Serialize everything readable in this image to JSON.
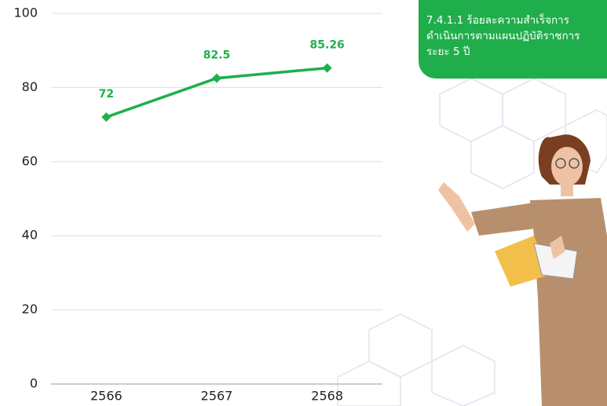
{
  "chart_data": {
    "type": "line",
    "title": "7.4.1.1 ร้อยละความสำเร็จการ\nดำเนินการตามแผนปฏิบัติราชการ\nระยะ 5 ปี",
    "categories": [
      "2566",
      "2567",
      "2568"
    ],
    "values": [
      72,
      82.5,
      85.26
    ],
    "color": "#1db04b",
    "ylim": [
      0,
      100
    ],
    "yticks": [
      0,
      20,
      40,
      60,
      80,
      100
    ],
    "grid": true
  }
}
